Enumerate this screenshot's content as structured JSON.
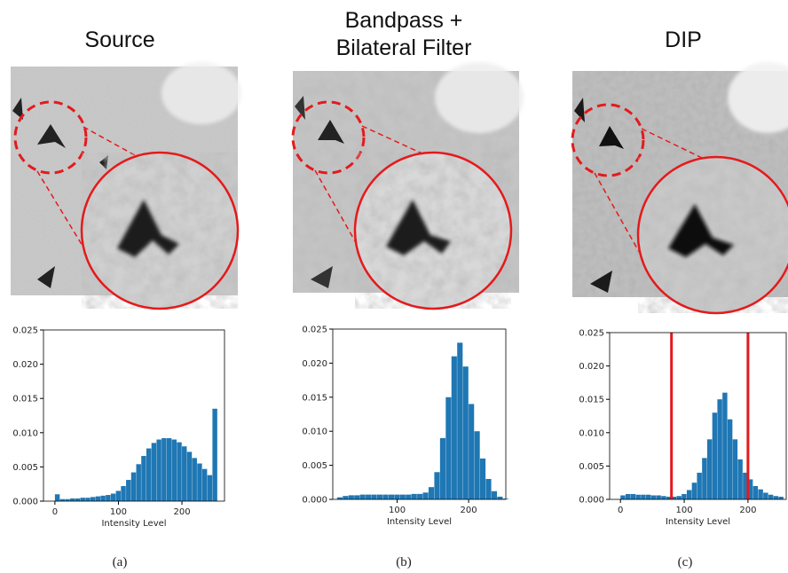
{
  "chart_data": [
    {
      "type": "histogram",
      "title": "Source",
      "caption": "(a)",
      "xlabel": "Intensity Level",
      "color": "#1f77b4",
      "bins": [
        0,
        8,
        16,
        24,
        32,
        40,
        48,
        56,
        64,
        72,
        80,
        88,
        96,
        104,
        112,
        120,
        128,
        136,
        144,
        152,
        160,
        168,
        176,
        184,
        192,
        200,
        208,
        216,
        224,
        232,
        240,
        248,
        256
      ],
      "values": [
        0.001,
        0.0003,
        0.0003,
        0.0004,
        0.0004,
        0.0005,
        0.0005,
        0.0006,
        0.0007,
        0.0008,
        0.0009,
        0.0011,
        0.0015,
        0.0022,
        0.0031,
        0.0042,
        0.0054,
        0.0066,
        0.0077,
        0.0085,
        0.009,
        0.0092,
        0.0092,
        0.009,
        0.0086,
        0.008,
        0.0072,
        0.0063,
        0.0055,
        0.0047,
        0.0038,
        0.0135
      ],
      "xlim": [
        -18,
        267
      ],
      "ylim": [
        0,
        0.025
      ],
      "xticks": [
        0,
        100,
        200
      ],
      "yticks": [
        {
          "value": 0,
          "label": "0.000"
        },
        {
          "value": 0.005,
          "label": "0.005"
        },
        {
          "value": 0.01,
          "label": "0.010"
        },
        {
          "value": 0.015,
          "label": "0.015"
        },
        {
          "value": 0.02,
          "label": "0.020"
        },
        {
          "value": 0.025,
          "label": "0.025"
        }
      ]
    },
    {
      "type": "histogram",
      "title": "Bandpass +\nBilateral Filter",
      "caption": "(b)",
      "xlabel": "Intensity Level",
      "color": "#1f77b4",
      "bins": [
        16,
        24,
        32,
        40,
        48,
        56,
        64,
        72,
        80,
        88,
        96,
        104,
        112,
        120,
        128,
        136,
        144,
        152,
        160,
        168,
        176,
        184,
        192,
        200,
        208,
        216,
        224,
        232,
        240,
        248,
        256
      ],
      "values": [
        0.0003,
        0.0005,
        0.0006,
        0.0006,
        0.0007,
        0.0007,
        0.0007,
        0.0007,
        0.0007,
        0.0007,
        0.0007,
        0.0007,
        0.0007,
        0.0008,
        0.0008,
        0.001,
        0.0018,
        0.004,
        0.009,
        0.015,
        0.021,
        0.023,
        0.0195,
        0.014,
        0.01,
        0.006,
        0.003,
        0.0012,
        0.0004,
        0.0001
      ],
      "xlim": [
        10,
        252
      ],
      "ylim": [
        0,
        0.025
      ],
      "xticks": [
        100,
        200
      ],
      "yticks": [
        {
          "value": 0,
          "label": "0.000"
        },
        {
          "value": 0.005,
          "label": "0.005"
        },
        {
          "value": 0.01,
          "label": "0.010"
        },
        {
          "value": 0.015,
          "label": "0.015"
        },
        {
          "value": 0.02,
          "label": "0.020"
        },
        {
          "value": 0.025,
          "label": "0.025"
        }
      ]
    },
    {
      "type": "histogram",
      "title": "DIP",
      "caption": "(c)",
      "xlabel": "Intensity Level",
      "color": "#1f77b4",
      "vlines": [
        80,
        200
      ],
      "vline_color": "#e41a1c",
      "bins": [
        0,
        8,
        16,
        24,
        32,
        40,
        48,
        56,
        64,
        72,
        80,
        88,
        96,
        104,
        112,
        120,
        128,
        136,
        144,
        152,
        160,
        168,
        176,
        184,
        192,
        200,
        208,
        216,
        224,
        232,
        240,
        248,
        256
      ],
      "values": [
        0.0006,
        0.0008,
        0.0008,
        0.0007,
        0.0007,
        0.0007,
        0.0006,
        0.0006,
        0.0005,
        0.0004,
        0.0004,
        0.0005,
        0.0008,
        0.0014,
        0.0025,
        0.004,
        0.0062,
        0.009,
        0.013,
        0.015,
        0.016,
        0.012,
        0.009,
        0.006,
        0.004,
        0.003,
        0.002,
        0.0015,
        0.001,
        0.0007,
        0.0005,
        0.0004
      ],
      "xlim": [
        -17,
        260
      ],
      "ylim": [
        0,
        0.025
      ],
      "xticks": [
        0,
        100,
        200
      ],
      "yticks": [
        {
          "value": 0,
          "label": "0.000"
        },
        {
          "value": 0.005,
          "label": "0.005"
        },
        {
          "value": 0.01,
          "label": "0.010"
        },
        {
          "value": 0.015,
          "label": "0.015"
        },
        {
          "value": 0.02,
          "label": "0.020"
        },
        {
          "value": 0.025,
          "label": "0.025"
        }
      ]
    }
  ]
}
